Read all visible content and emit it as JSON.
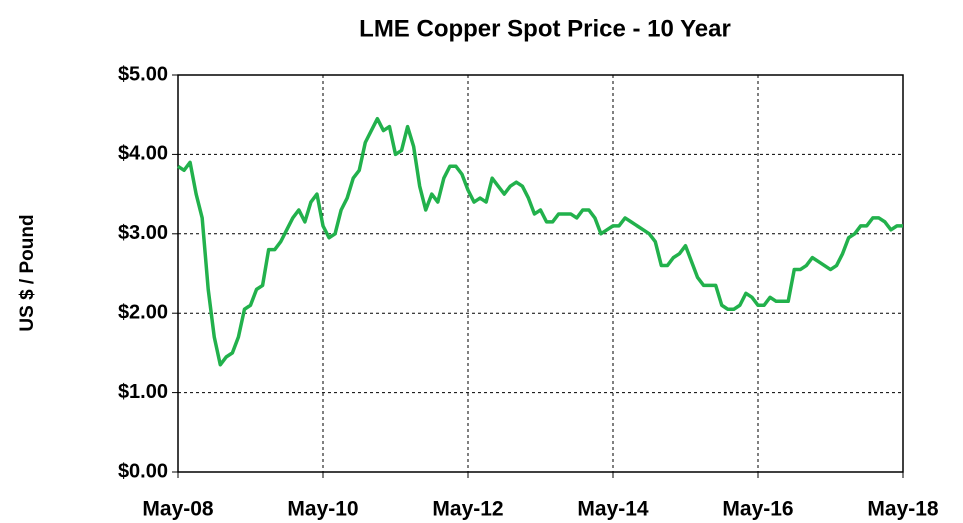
{
  "chart_data": {
    "type": "line",
    "title": "LME  Copper  Spot  Price - 10 Year",
    "ylabel": "US $ / Pound",
    "color": "#22b14c",
    "grid": true,
    "x": [
      "2008-05",
      "2008-06",
      "2008-07",
      "2008-08",
      "2008-09",
      "2008-10",
      "2008-11",
      "2008-12",
      "2009-01",
      "2009-02",
      "2009-03",
      "2009-04",
      "2009-05",
      "2009-06",
      "2009-07",
      "2009-08",
      "2009-09",
      "2009-10",
      "2009-11",
      "2009-12",
      "2010-01",
      "2010-02",
      "2010-03",
      "2010-04",
      "2010-05",
      "2010-06",
      "2010-07",
      "2010-08",
      "2010-09",
      "2010-10",
      "2010-11",
      "2010-12",
      "2011-01",
      "2011-02",
      "2011-03",
      "2011-04",
      "2011-05",
      "2011-06",
      "2011-07",
      "2011-08",
      "2011-09",
      "2011-10",
      "2011-11",
      "2011-12",
      "2012-01",
      "2012-02",
      "2012-03",
      "2012-04",
      "2012-05",
      "2012-06",
      "2012-07",
      "2012-08",
      "2012-09",
      "2012-10",
      "2012-11",
      "2012-12",
      "2013-01",
      "2013-02",
      "2013-03",
      "2013-04",
      "2013-05",
      "2013-06",
      "2013-07",
      "2013-08",
      "2013-09",
      "2013-10",
      "2013-11",
      "2013-12",
      "2014-01",
      "2014-02",
      "2014-03",
      "2014-04",
      "2014-05",
      "2014-06",
      "2014-07",
      "2014-08",
      "2014-09",
      "2014-10",
      "2014-11",
      "2014-12",
      "2015-01",
      "2015-02",
      "2015-03",
      "2015-04",
      "2015-05",
      "2015-06",
      "2015-07",
      "2015-08",
      "2015-09",
      "2015-10",
      "2015-11",
      "2015-12",
      "2016-01",
      "2016-02",
      "2016-03",
      "2016-04",
      "2016-05",
      "2016-06",
      "2016-07",
      "2016-08",
      "2016-09",
      "2016-10",
      "2016-11",
      "2016-12",
      "2017-01",
      "2017-02",
      "2017-03",
      "2017-04",
      "2017-05",
      "2017-06",
      "2017-07",
      "2017-08",
      "2017-09",
      "2017-10",
      "2017-11",
      "2017-12",
      "2018-01",
      "2018-02",
      "2018-03",
      "2018-04",
      "2018-05"
    ],
    "values": [
      3.85,
      3.8,
      3.9,
      3.5,
      3.2,
      2.3,
      1.7,
      1.35,
      1.45,
      1.5,
      1.7,
      2.05,
      2.1,
      2.3,
      2.35,
      2.8,
      2.8,
      2.9,
      3.05,
      3.2,
      3.3,
      3.15,
      3.4,
      3.5,
      3.1,
      2.95,
      3.0,
      3.3,
      3.45,
      3.7,
      3.8,
      4.15,
      4.3,
      4.45,
      4.3,
      4.35,
      4.0,
      4.05,
      4.35,
      4.1,
      3.6,
      3.3,
      3.5,
      3.4,
      3.7,
      3.85,
      3.85,
      3.75,
      3.55,
      3.4,
      3.45,
      3.4,
      3.7,
      3.6,
      3.5,
      3.6,
      3.65,
      3.6,
      3.45,
      3.25,
      3.3,
      3.15,
      3.15,
      3.25,
      3.25,
      3.25,
      3.2,
      3.3,
      3.3,
      3.2,
      3.0,
      3.05,
      3.1,
      3.1,
      3.2,
      3.15,
      3.1,
      3.05,
      3.0,
      2.9,
      2.6,
      2.6,
      2.7,
      2.75,
      2.85,
      2.65,
      2.45,
      2.35,
      2.35,
      2.35,
      2.1,
      2.05,
      2.05,
      2.1,
      2.25,
      2.2,
      2.1,
      2.1,
      2.2,
      2.15,
      2.15,
      2.15,
      2.55,
      2.55,
      2.6,
      2.7,
      2.65,
      2.6,
      2.55,
      2.6,
      2.75,
      2.95,
      3.0,
      3.1,
      3.1,
      3.2,
      3.2,
      3.15,
      3.05,
      3.1,
      3.1
    ],
    "xlim": [
      "2008-05",
      "2018-05"
    ],
    "xticks": [
      {
        "value": "2008-05",
        "label": "May-08"
      },
      {
        "value": "2010-05",
        "label": "May-10"
      },
      {
        "value": "2012-05",
        "label": "May-12"
      },
      {
        "value": "2014-05",
        "label": "May-14"
      },
      {
        "value": "2016-05",
        "label": "May-16"
      },
      {
        "value": "2018-05",
        "label": "May-18"
      }
    ],
    "ylim": [
      0,
      5
    ],
    "yticks": [
      {
        "value": 0,
        "label": "$0.00"
      },
      {
        "value": 1,
        "label": "$1.00"
      },
      {
        "value": 2,
        "label": "$2.00"
      },
      {
        "value": 3,
        "label": "$3.00"
      },
      {
        "value": 4,
        "label": "$4.00"
      },
      {
        "value": 5,
        "label": "$5.00"
      }
    ]
  }
}
